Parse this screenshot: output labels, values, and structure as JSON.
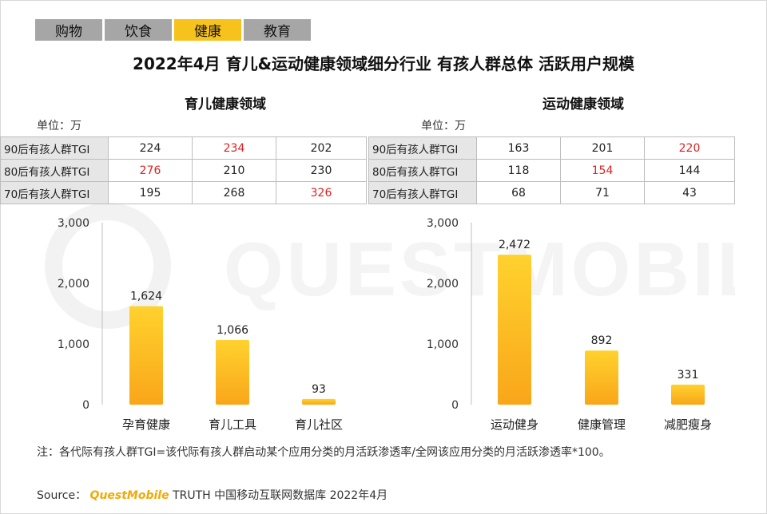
{
  "tabs": [
    {
      "label": "购物",
      "active": false
    },
    {
      "label": "饮食",
      "active": false
    },
    {
      "label": "健康",
      "active": true
    },
    {
      "label": "教育",
      "active": false
    }
  ],
  "title": "2022年4月 育儿&运动健康领域细分行业 有孩人群总体 活跃用户规模",
  "watermark": "QUESTMOBILE",
  "unit": "单位：万",
  "sections": [
    {
      "title": "育儿健康领域",
      "tgi": [
        {
          "label": "90后有孩人群TGI",
          "values": [
            "224",
            "234",
            "202"
          ],
          "highlight": 1
        },
        {
          "label": "80后有孩人群TGI",
          "values": [
            "276",
            "210",
            "230"
          ],
          "highlight": 0
        },
        {
          "label": "70后有孩人群TGI",
          "values": [
            "195",
            "268",
            "326"
          ],
          "highlight": 2
        }
      ]
    },
    {
      "title": "运动健康领域",
      "tgi": [
        {
          "label": "90后有孩人群TGI",
          "values": [
            "163",
            "201",
            "220"
          ],
          "highlight": 2
        },
        {
          "label": "80后有孩人群TGI",
          "values": [
            "118",
            "154",
            "144"
          ],
          "highlight": 1
        },
        {
          "label": "70后有孩人群TGI",
          "values": [
            "68",
            "71",
            "43"
          ],
          "highlight": -1
        }
      ]
    }
  ],
  "chart_data": [
    {
      "type": "bar",
      "title": "育儿健康领域",
      "categories": [
        "孕育健康",
        "育儿工具",
        "育儿社区"
      ],
      "values": [
        1624,
        1066,
        93
      ],
      "value_labels": [
        "1,624",
        "1,066",
        "93"
      ],
      "yticks": [
        0,
        1000,
        2000,
        3000
      ],
      "ytick_labels": [
        "0",
        "1,000",
        "2,000",
        "3,000"
      ],
      "ylim": [
        0,
        3000
      ],
      "unit": "万"
    },
    {
      "type": "bar",
      "title": "运动健康领域",
      "categories": [
        "运动健身",
        "健康管理",
        "减肥瘦身"
      ],
      "values": [
        2472,
        892,
        331
      ],
      "value_labels": [
        "2,472",
        "892",
        "331"
      ],
      "yticks": [
        0,
        1000,
        2000,
        3000
      ],
      "ytick_labels": [
        "0",
        "1,000",
        "2,000",
        "3,000"
      ],
      "ylim": [
        0,
        3000
      ],
      "unit": "万"
    }
  ],
  "colors": {
    "bar_top": "#ffd22e",
    "bar_bottom": "#f9a61a",
    "highlight": "#e02020",
    "tab_active": "#f7c21b"
  },
  "note": "注：各代际有孩人群TGI=该代际有孩人群启动某个应用分类的月活跃渗透率/全网该应用分类的月活跃渗透率*100。",
  "source": {
    "prefix": "Source：",
    "brand": "QuestMobile",
    "rest": "TRUTH 中国移动互联网数据库 2022年4月"
  }
}
